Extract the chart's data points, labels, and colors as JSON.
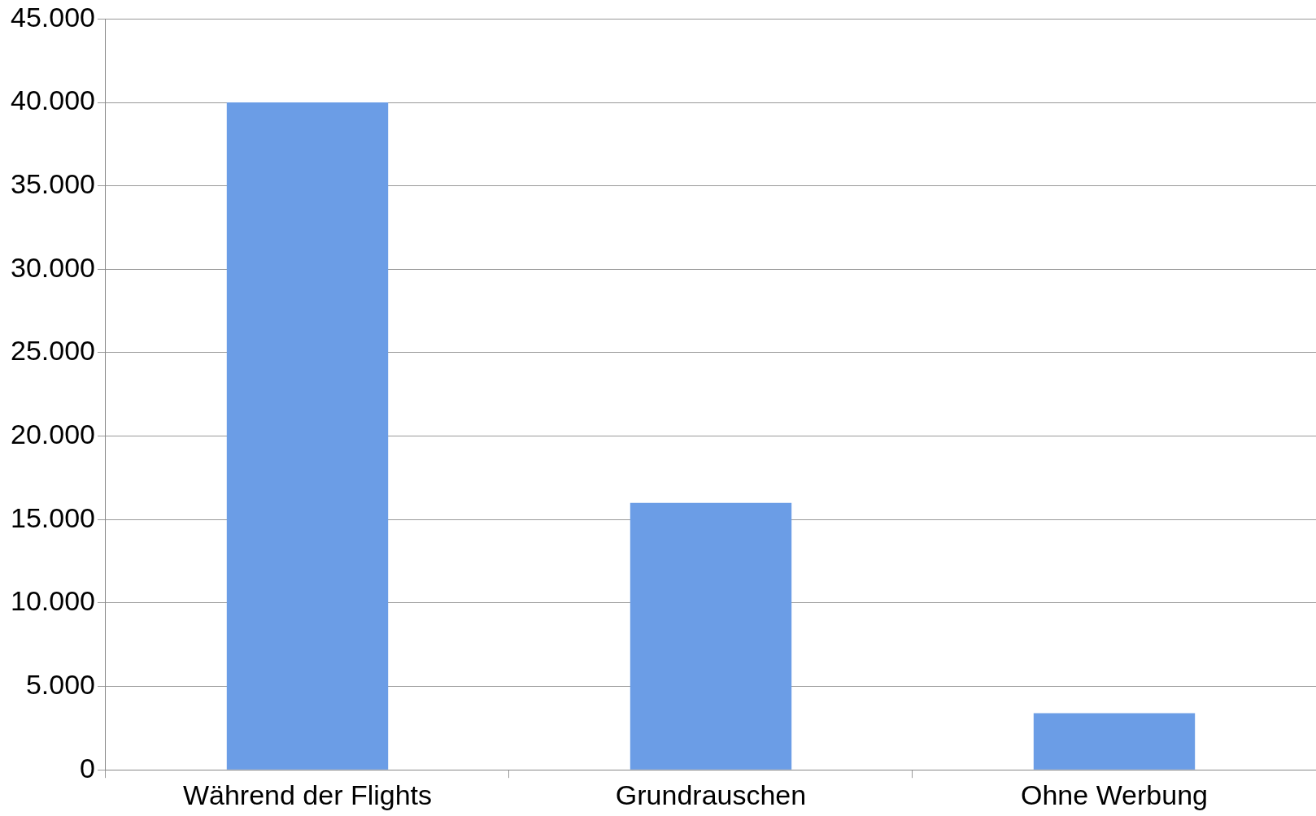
{
  "chart_data": {
    "type": "bar",
    "categories": [
      "Während der Flights",
      "Grundrauschen",
      "Ohne Werbung"
    ],
    "values": [
      40000,
      16000,
      3400
    ],
    "color": "#6b9de6",
    "ylim": [
      0,
      45000
    ],
    "yticks": [
      {
        "value": 0,
        "label": "0"
      },
      {
        "value": 5000,
        "label": "5.000"
      },
      {
        "value": 10000,
        "label": "10.000"
      },
      {
        "value": 15000,
        "label": "15.000"
      },
      {
        "value": 20000,
        "label": "20.000"
      },
      {
        "value": 25000,
        "label": "25.000"
      },
      {
        "value": 30000,
        "label": "30.000"
      },
      {
        "value": 35000,
        "label": "35.000"
      },
      {
        "value": 40000,
        "label": "40.000"
      },
      {
        "value": 45000,
        "label": "45.000"
      }
    ],
    "grid": "y",
    "legend": false
  }
}
